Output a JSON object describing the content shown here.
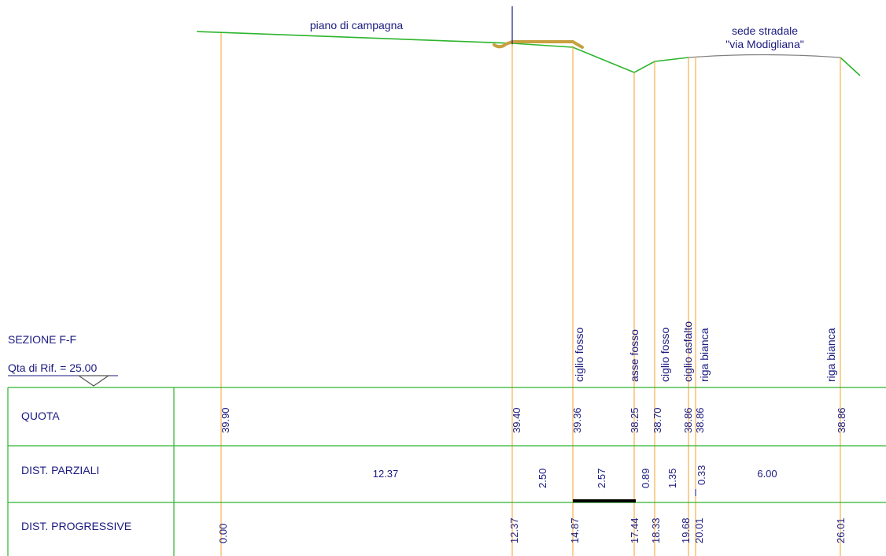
{
  "section": {
    "title": "SEZIONE F-F",
    "reference_level": "Qta di Rif. = 25.00"
  },
  "profile_labels": {
    "ground": "piano di campagna",
    "road_line1": "sede stradale",
    "road_line2": "\"via Modigliana\""
  },
  "rows": {
    "quota": "QUOTA",
    "parziali": "DIST. PARZIALI",
    "progressive": "DIST. PROGRESSIVE"
  },
  "stations": [
    {
      "progressive": "0.00",
      "quota": "39.90",
      "feature": ""
    },
    {
      "progressive": "12.37",
      "quota": "39.40",
      "feature": ""
    },
    {
      "progressive": "14.87",
      "quota": "39.36",
      "feature": "ciglio fosso"
    },
    {
      "progressive": "17.44",
      "quota": "38.25",
      "feature": "asse fosso"
    },
    {
      "progressive": "18.33",
      "quota": "38.70",
      "feature": "ciglio fosso"
    },
    {
      "progressive": "19.68",
      "quota": "38.86",
      "feature": "ciglio asfalto"
    },
    {
      "progressive": "20.01",
      "quota": "38.86",
      "feature": "riga bianca"
    },
    {
      "progressive": "26.01",
      "quota": "38.86",
      "feature": "riga bianca"
    }
  ],
  "partials": [
    {
      "value": "12.37",
      "vertical": false
    },
    {
      "value": "2.50",
      "vertical": true
    },
    {
      "value": "2.57",
      "vertical": true
    },
    {
      "value": "0.89",
      "vertical": true
    },
    {
      "value": "1.35",
      "vertical": true
    },
    {
      "value": "0.33",
      "vertical": true
    },
    {
      "value": "6.00",
      "vertical": false
    }
  ],
  "colors": {
    "ground": "#2db52d",
    "road": "#7f7f7f",
    "fill": "#c8a040",
    "station": "#f5a93c",
    "grid": "#2db52d",
    "text": "#1a1a80",
    "axis": "#1a1a80"
  }
}
